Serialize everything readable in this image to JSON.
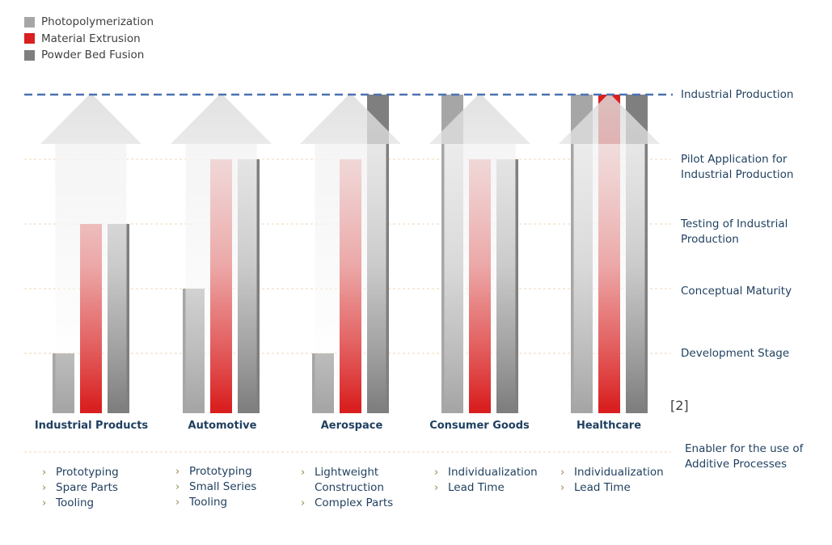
{
  "legend": [
    {
      "label": "Photopolymerization",
      "color": "#a6a6a6"
    },
    {
      "label": "Material Extrusion",
      "color": "#d91f1f"
    },
    {
      "label": "Powder Bed Fusion",
      "color": "#7f7f7f"
    }
  ],
  "colors": {
    "dashed_line": "#4a72b0",
    "dotted_grid": "#f0d5b8",
    "arrow": "#dcdcdc",
    "text": "#1f3f5f"
  },
  "chart_data": {
    "type": "bar",
    "categories": [
      "Industrial Products",
      "Automotive",
      "Aerospace",
      "Consumer Goods",
      "Healthcare"
    ],
    "levels": [
      "Development Stage",
      "Conceptual Maturity",
      "Testing of  Industrial\nProduction",
      "Pilot Application for\nIndustrial Production",
      "Industrial Production"
    ],
    "series": [
      {
        "name": "Photopolymerization",
        "values": [
          1,
          2,
          1,
          5,
          5
        ]
      },
      {
        "name": "Material Extrusion",
        "values": [
          3,
          4,
          4,
          4,
          5
        ]
      },
      {
        "name": "Powder Bed Fusion",
        "values": [
          3,
          4,
          5,
          4,
          5
        ]
      }
    ],
    "ylim": [
      0,
      5
    ],
    "grid": true,
    "legend_position": "top-left"
  },
  "reference": "[2]",
  "enabler": {
    "title": "Enabler for the use of\nAdditive Processes",
    "lists": [
      [
        "Prototyping",
        "Spare Parts",
        "Tooling"
      ],
      [
        "Prototyping",
        "Small Series",
        "Tooling"
      ],
      [
        "Lightweight\nConstruction",
        "Complex Parts"
      ],
      [
        "Individualization",
        "Lead Time"
      ],
      [
        "Individualization",
        "Lead Time"
      ]
    ]
  }
}
